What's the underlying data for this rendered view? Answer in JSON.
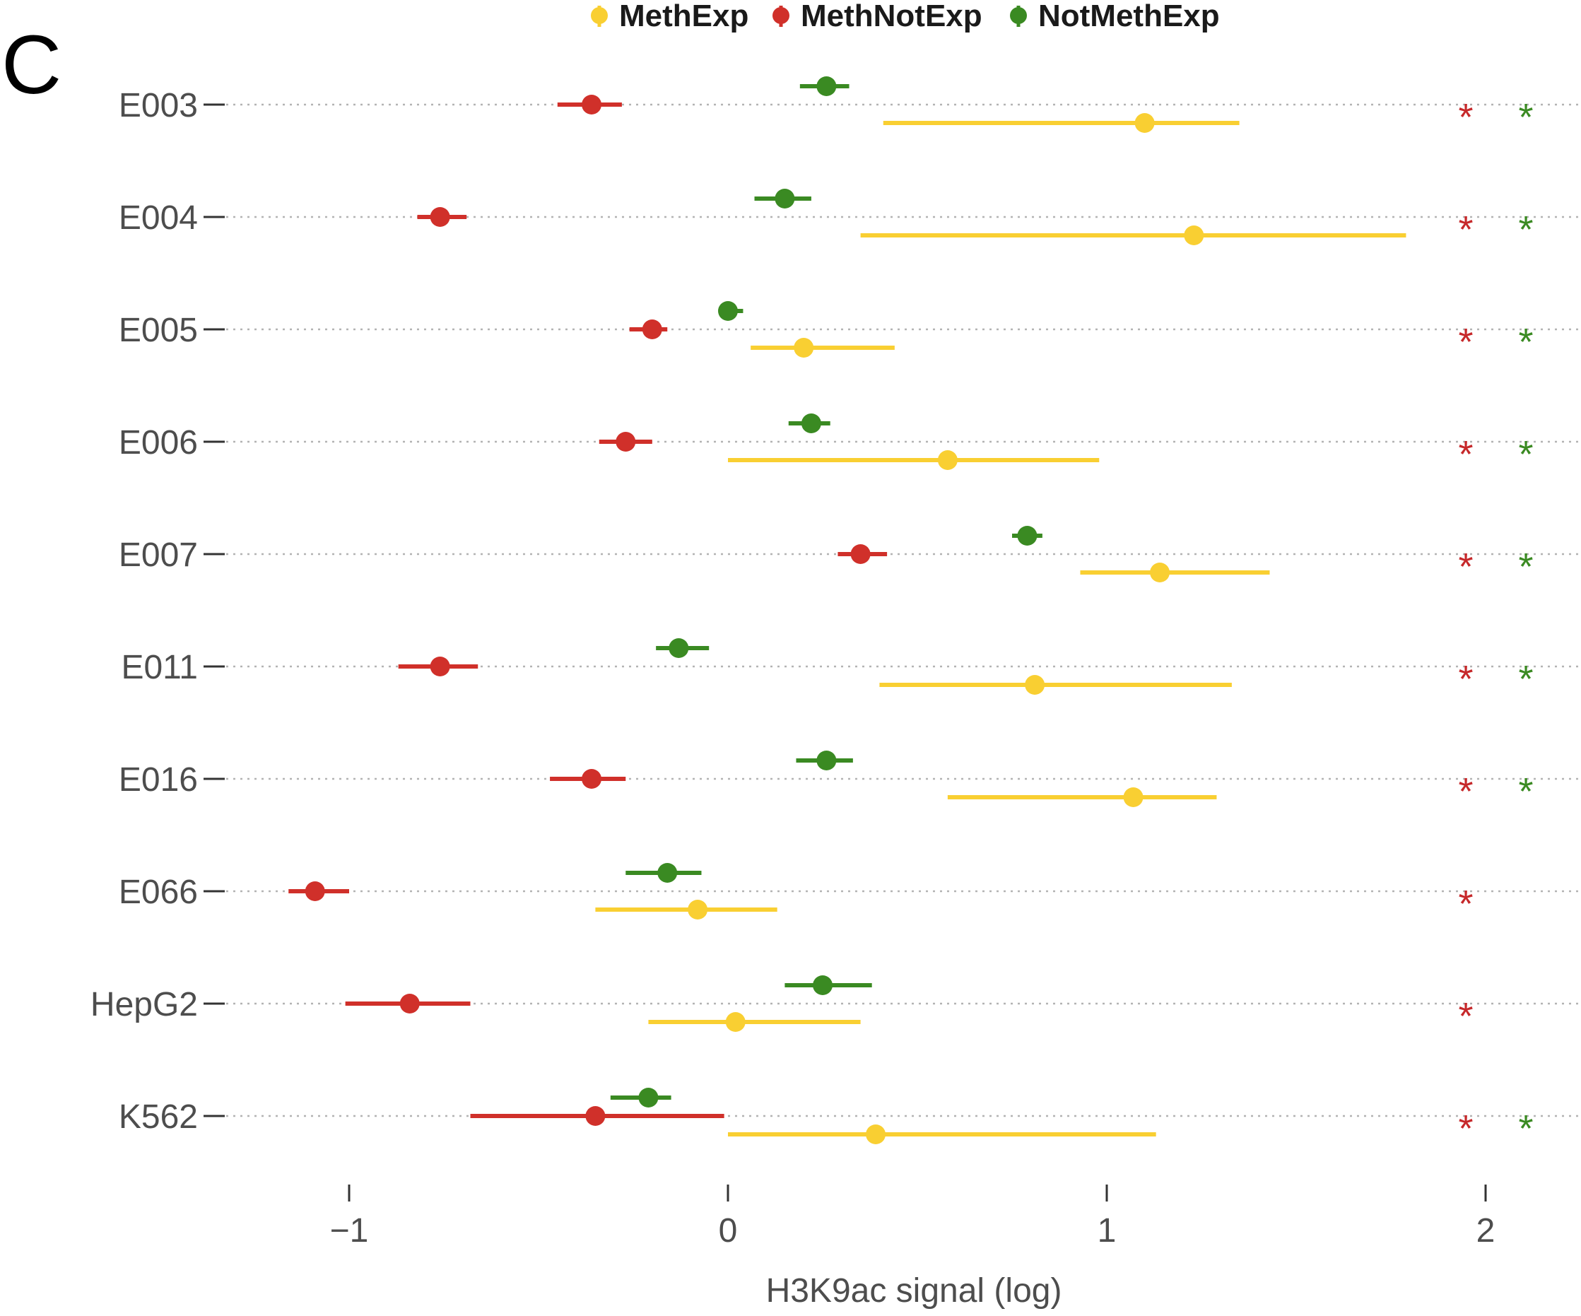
{
  "panel_label": "C",
  "chart_data": {
    "type": "scatter",
    "subtype": "dot-and-whisker",
    "xlabel": "H3K9ac signal (log)",
    "xlim": [
      -1.37,
      2.18
    ],
    "xticks": [
      -1,
      0,
      1,
      2
    ],
    "xtick_labels": [
      "−1",
      "0",
      "1",
      "2"
    ],
    "grid": "dotted horizontal lines per category",
    "legend_position": "top",
    "categories": [
      "E003",
      "E004",
      "E005",
      "E006",
      "E007",
      "E011",
      "E016",
      "E066",
      "HepG2",
      "K562"
    ],
    "series": [
      {
        "name": "MethExp",
        "color": "#F9CF32",
        "values": [
          1.1,
          1.23,
          0.2,
          0.58,
          1.14,
          0.81,
          1.07,
          -0.08,
          0.02,
          0.39
        ],
        "ci_low": [
          0.41,
          0.35,
          0.06,
          0.0,
          0.93,
          0.4,
          0.58,
          -0.35,
          -0.21,
          0.0
        ],
        "ci_high": [
          1.35,
          1.79,
          0.44,
          0.98,
          1.43,
          1.33,
          1.29,
          0.13,
          0.35,
          1.13
        ]
      },
      {
        "name": "MethNotExp",
        "color": "#D0302A",
        "values": [
          -0.36,
          -0.76,
          -0.2,
          -0.27,
          0.35,
          -0.76,
          -0.36,
          -1.09,
          -0.84,
          -0.35
        ],
        "ci_low": [
          -0.45,
          -0.82,
          -0.26,
          -0.34,
          0.29,
          -0.87,
          -0.47,
          -1.16,
          -1.01,
          -0.68
        ],
        "ci_high": [
          -0.28,
          -0.69,
          -0.16,
          -0.2,
          0.42,
          -0.66,
          -0.27,
          -1.0,
          -0.68,
          -0.01
        ]
      },
      {
        "name": "NotMethExp",
        "color": "#3A8A22",
        "values": [
          0.26,
          0.15,
          0.0,
          0.22,
          0.79,
          -0.13,
          0.26,
          -0.16,
          0.25,
          -0.21
        ],
        "ci_low": [
          0.19,
          0.07,
          -0.02,
          0.16,
          0.75,
          -0.19,
          0.18,
          -0.27,
          0.15,
          -0.31
        ],
        "ci_high": [
          0.32,
          0.22,
          0.04,
          0.27,
          0.83,
          -0.05,
          0.33,
          -0.07,
          0.38,
          -0.15
        ]
      }
    ],
    "significance": {
      "symbol": "*",
      "MethNotExp_color": "#C6282A",
      "NotMethExp_color": "#3A8A22",
      "MethNotExp": [
        true,
        true,
        true,
        true,
        true,
        true,
        true,
        true,
        true,
        true
      ],
      "NotMethExp": [
        true,
        true,
        true,
        true,
        true,
        true,
        true,
        false,
        false,
        true
      ]
    }
  }
}
